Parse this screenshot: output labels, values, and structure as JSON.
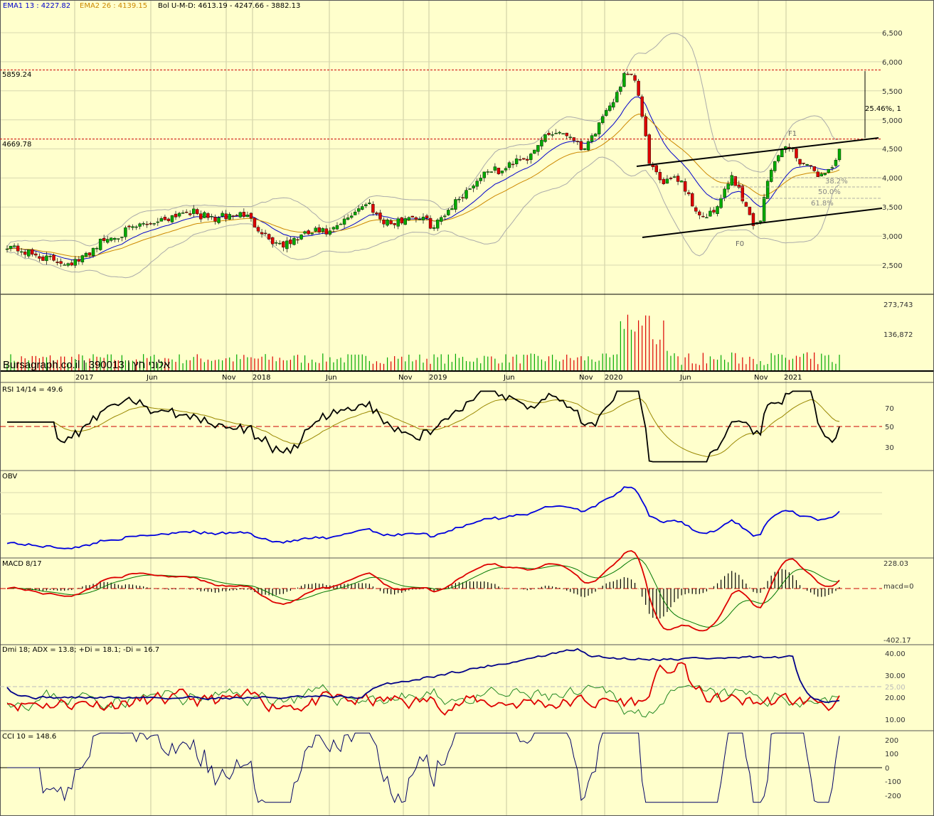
{
  "header": {
    "ema1": "EMA1 13 : 4227.82",
    "ema2": "EMA2 26 : 4139.15",
    "bol": "Bol U-M-D: 4613.19 - 4247.66 - 3882.13"
  },
  "watermark": "Bursagraph.co.il | 390013 | אלוני חץ",
  "price_panel": {
    "y_ticks": [
      "6,500",
      "6,000",
      "5,500",
      "5,000",
      "4,500",
      "4,000",
      "3,500",
      "3,000",
      "2,500"
    ],
    "resistance_labels": [
      "5859.24",
      "4669.78"
    ],
    "target_label": "25.46%, 1",
    "fib_labels": [
      "38.2%",
      "50.0%",
      "61.8%"
    ],
    "wave_labels": [
      "F1",
      "F0"
    ]
  },
  "volume_panel": {
    "ticks": [
      "273,743",
      "136,872"
    ]
  },
  "x_labels": [
    "2017",
    "Jun",
    "Nov",
    "2018",
    "Jun",
    "Nov",
    "2019",
    "Jun",
    "Nov",
    "2020",
    "Jun",
    "Nov",
    "2021"
  ],
  "rsi_panel": {
    "title": "RSI 14/14 = 49.6",
    "ticks": [
      "70",
      "50",
      "30"
    ]
  },
  "obv_panel": {
    "title": "OBV"
  },
  "macd_panel": {
    "title": "MACD 8/17",
    "ticks": [
      "228.03",
      "macd=0",
      "-402.17"
    ]
  },
  "dmi_panel": {
    "title": "Dmi 18; ADX = 13.8; +Di = 18.1; -Di = 16.7",
    "ticks": [
      "40.00",
      "30.00",
      "25.00",
      "20.00",
      "10.00"
    ]
  },
  "cci_panel": {
    "title": "CCI 10 = 148.6",
    "ticks": [
      "200",
      "100",
      "0",
      "-100",
      "-200"
    ]
  },
  "colors": {
    "background": "#ffffcc",
    "up": "#00aa00",
    "down": "#dd0000",
    "ema1": "#0000cc",
    "ema2": "#cc8800",
    "rsi": "#000000",
    "obv": "#0000dd",
    "macd": "#dd0000",
    "signal": "#007700",
    "adx": "#000088",
    "plus_di": "#dd0000",
    "minus_di": "#228822",
    "cci": "#000066",
    "ref": "#cc0000"
  },
  "chart_data": [
    {
      "type": "candlestick",
      "title": "",
      "x_labels": [
        "2017",
        "Jun",
        "Nov",
        "2018",
        "Jun",
        "Nov",
        "2019",
        "Jun",
        "Nov",
        "2020",
        "Jun",
        "Nov",
        "2021"
      ],
      "ylim": [
        2250,
        6750
      ],
      "close_keypoints": [
        [
          0,
          2850
        ],
        [
          6,
          2700
        ],
        [
          12,
          2600
        ],
        [
          16,
          2550
        ],
        [
          20,
          2560
        ],
        [
          26,
          2900
        ],
        [
          32,
          3050
        ],
        [
          38,
          3200
        ],
        [
          44,
          3300
        ],
        [
          50,
          3450
        ],
        [
          54,
          3350
        ],
        [
          58,
          3300
        ],
        [
          62,
          3350
        ],
        [
          66,
          3380
        ],
        [
          70,
          3150
        ],
        [
          74,
          2900
        ],
        [
          78,
          2850
        ],
        [
          82,
          3000
        ],
        [
          86,
          3080
        ],
        [
          90,
          3050
        ],
        [
          94,
          3250
        ],
        [
          98,
          3500
        ],
        [
          101,
          3550
        ],
        [
          104,
          3300
        ],
        [
          108,
          3200
        ],
        [
          112,
          3350
        ],
        [
          116,
          3300
        ],
        [
          119,
          3150
        ],
        [
          122,
          3400
        ],
        [
          126,
          3650
        ],
        [
          130,
          3900
        ],
        [
          134,
          4150
        ],
        [
          138,
          4100
        ],
        [
          142,
          4350
        ],
        [
          146,
          4350
        ],
        [
          150,
          4750
        ],
        [
          154,
          4800
        ],
        [
          158,
          4700
        ],
        [
          160,
          4500
        ],
        [
          164,
          4800
        ],
        [
          168,
          5200
        ],
        [
          172,
          5750
        ],
        [
          175,
          5700
        ],
        [
          176,
          5400
        ],
        [
          179,
          4300
        ],
        [
          182,
          3900
        ],
        [
          185,
          4050
        ],
        [
          188,
          3950
        ],
        [
          191,
          3550
        ],
        [
          194,
          3300
        ],
        [
          197,
          3400
        ],
        [
          200,
          3750
        ],
        [
          202,
          4050
        ],
        [
          204,
          3800
        ],
        [
          206,
          3500
        ],
        [
          208,
          3200
        ],
        [
          210,
          3300
        ],
        [
          212,
          3950
        ],
        [
          215,
          4450
        ],
        [
          218,
          4550
        ],
        [
          221,
          4300
        ],
        [
          224,
          4150
        ],
        [
          227,
          4050
        ],
        [
          230,
          4200
        ],
        [
          232,
          4450
        ]
      ]
    },
    {
      "type": "bar",
      "title": "",
      "ylim": [
        0,
        273743
      ],
      "series_names": []
    },
    {
      "type": "line",
      "title": "RSI 14/14 = 49.6",
      "ylim": [
        0,
        100
      ],
      "y_ticks": [
        30,
        50,
        70
      ]
    },
    {
      "type": "line",
      "title": "OBV"
    },
    {
      "type": "bar",
      "title": "MACD 8/17",
      "ylim": [
        -402.17,
        228.03
      ]
    },
    {
      "type": "line",
      "title": "Dmi 18; ADX = 13.8; +Di = 18.1; -Di = 16.7",
      "ylim": [
        5,
        45
      ],
      "values": {
        "ADX": 13.8,
        "+Di": 18.1,
        "-Di": 16.7
      }
    },
    {
      "type": "line",
      "title": "CCI 10 = 148.6",
      "ylim": [
        -250,
        250
      ],
      "y_ticks": [
        -200,
        -100,
        0,
        100,
        200
      ],
      "values": {
        "CCI": 148.6
      }
    }
  ]
}
